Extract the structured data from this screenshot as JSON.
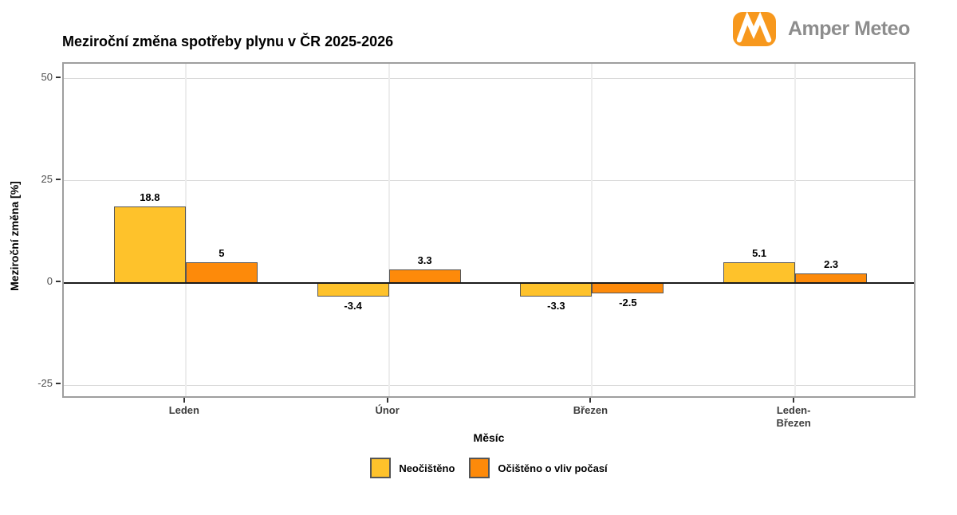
{
  "title": "Meziroční změna spotřeby plynu v ČR 2025-2026",
  "header": {
    "brand": "Amper Meteo",
    "brand_color": "#f7981d",
    "brand_text_color": "#8d8d8d"
  },
  "chart_data": {
    "type": "bar",
    "categories": [
      "Leden",
      "Únor",
      "Březen",
      "Leden-\nBřezen"
    ],
    "series": [
      {
        "name": "Neočištěno",
        "color": "#fec22b",
        "values": [
          18.8,
          -3.4,
          -3.3,
          5.1
        ]
      },
      {
        "name": "Očištěno o vliv počasí",
        "color": "#fd8a0a",
        "values": [
          5,
          3.3,
          -2.5,
          2.3
        ]
      }
    ],
    "title": "Meziroční změna spotřeby plynu v ČR 2025-2026",
    "xlabel": "Měsíc",
    "ylabel": "Meziroční změna [%]",
    "yticks": [
      50,
      25,
      0,
      -25
    ],
    "ylim": [
      -28.5,
      53.7
    ],
    "grid": true,
    "legend_position": "bottom",
    "bar_border_color": "#575757",
    "zero_line_color": "#1a1a1a"
  }
}
